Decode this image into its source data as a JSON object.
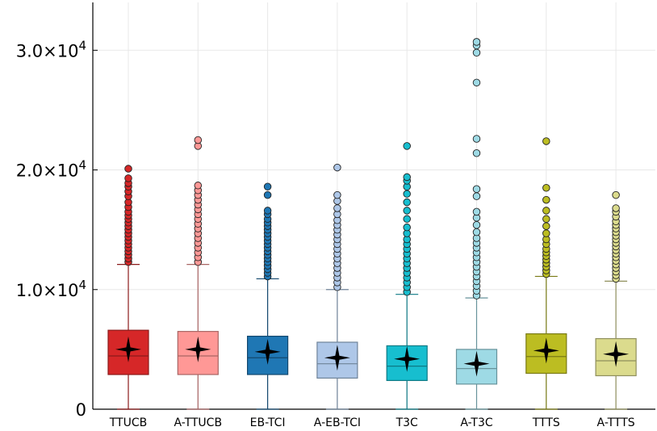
{
  "chart_data": {
    "type": "box",
    "title": "",
    "xlabel": "",
    "ylabel": "",
    "ylim": [
      0,
      34000
    ],
    "grid": true,
    "legend": "none",
    "y_ticks": [
      {
        "value": 0,
        "label": "0"
      },
      {
        "value": 10000,
        "label": "1.0×10",
        "exp": "4"
      },
      {
        "value": 20000,
        "label": "2.0×10",
        "exp": "4"
      },
      {
        "value": 30000,
        "label": "3.0×10",
        "exp": "4"
      }
    ],
    "categories": [
      "TTUCB",
      "A-TTUCB",
      "EB-TCI",
      "A-EB-TCI",
      "T3C",
      "A-T3C",
      "TTTS",
      "A-TTTS"
    ],
    "boxes": [
      {
        "name": "TTUCB",
        "color": "#d62728",
        "edge": "#8b1a1a",
        "min": 0,
        "q1": 2900,
        "median": 4450,
        "q3": 6600,
        "whisker_high": 12100,
        "mean": 5000,
        "outliers": [
          12300,
          12600,
          12900,
          13200,
          13500,
          13800,
          14100,
          14400,
          14700,
          15000,
          15300,
          15600,
          15900,
          16200,
          16500,
          16900,
          17300,
          17800,
          18200,
          18600,
          18900,
          19300,
          20100
        ]
      },
      {
        "name": "A-TTUCB",
        "color": "#ff9896",
        "edge": "#a86563",
        "min": 0,
        "q1": 2900,
        "median": 4450,
        "q3": 6500,
        "whisker_high": 12100,
        "mean": 5000,
        "outliers": [
          12300,
          12700,
          13100,
          13500,
          13900,
          14300,
          14700,
          15100,
          15500,
          15900,
          16300,
          16700,
          17100,
          17500,
          17900,
          18300,
          18700,
          22000,
          22500
        ]
      },
      {
        "name": "EB-TCI",
        "color": "#1f77b4",
        "edge": "#13486e",
        "min": 0,
        "q1": 2900,
        "median": 4300,
        "q3": 6100,
        "whisker_high": 10900,
        "mean": 4800,
        "outliers": [
          11100,
          11400,
          11700,
          12000,
          12300,
          12600,
          12900,
          13200,
          13500,
          13800,
          14100,
          14400,
          14700,
          15000,
          15300,
          15600,
          15900,
          16300,
          16600,
          17900,
          18600
        ]
      },
      {
        "name": "A-EB-TCI",
        "color": "#aec7e8",
        "edge": "#6f8399",
        "min": 0,
        "q1": 2600,
        "median": 3800,
        "q3": 5600,
        "whisker_high": 10000,
        "mean": 4300,
        "outliers": [
          10200,
          10600,
          11000,
          11400,
          11800,
          12200,
          12600,
          13000,
          13400,
          13800,
          14200,
          14600,
          15000,
          15400,
          15800,
          16300,
          16800,
          17400,
          17900,
          20200
        ]
      },
      {
        "name": "T3C",
        "color": "#17becf",
        "edge": "#0e7a85",
        "min": 0,
        "q1": 2400,
        "median": 3600,
        "q3": 5300,
        "whisker_high": 9600,
        "mean": 4200,
        "outliers": [
          9800,
          10200,
          10600,
          11000,
          11400,
          11800,
          12200,
          12600,
          13000,
          13400,
          13800,
          14200,
          14700,
          15200,
          15900,
          16600,
          17300,
          18000,
          18600,
          19100,
          19400,
          22000
        ]
      },
      {
        "name": "A-T3C",
        "color": "#9edae5",
        "edge": "#67939b",
        "min": 0,
        "q1": 2100,
        "median": 3400,
        "q3": 5000,
        "whisker_high": 9300,
        "mean": 3800,
        "outliers": [
          9500,
          9900,
          10300,
          10700,
          11100,
          11500,
          11900,
          12300,
          12700,
          13100,
          13500,
          13900,
          14300,
          14800,
          15400,
          16000,
          16500,
          17800,
          18400,
          21400,
          22600,
          27300,
          29800,
          30400,
          30700
        ]
      },
      {
        "name": "TTTS",
        "color": "#bcbd22",
        "edge": "#7a7b16",
        "min": 0,
        "q1": 3000,
        "median": 4400,
        "q3": 6300,
        "whisker_high": 11100,
        "mean": 4900,
        "outliers": [
          11300,
          11600,
          11900,
          12200,
          12500,
          12800,
          13100,
          13400,
          13800,
          14200,
          14700,
          15300,
          15900,
          16600,
          17500,
          18500,
          22400
        ]
      },
      {
        "name": "A-TTTS",
        "color": "#dbdb8d",
        "edge": "#8f8f5c",
        "min": 0,
        "q1": 2800,
        "median": 4050,
        "q3": 5900,
        "whisker_high": 10700,
        "mean": 4600,
        "outliers": [
          10900,
          11200,
          11500,
          11800,
          12100,
          12400,
          12700,
          13000,
          13300,
          13600,
          13900,
          14200,
          14500,
          14800,
          15100,
          15400,
          15700,
          16100,
          16500,
          16800,
          17900
        ]
      }
    ]
  }
}
